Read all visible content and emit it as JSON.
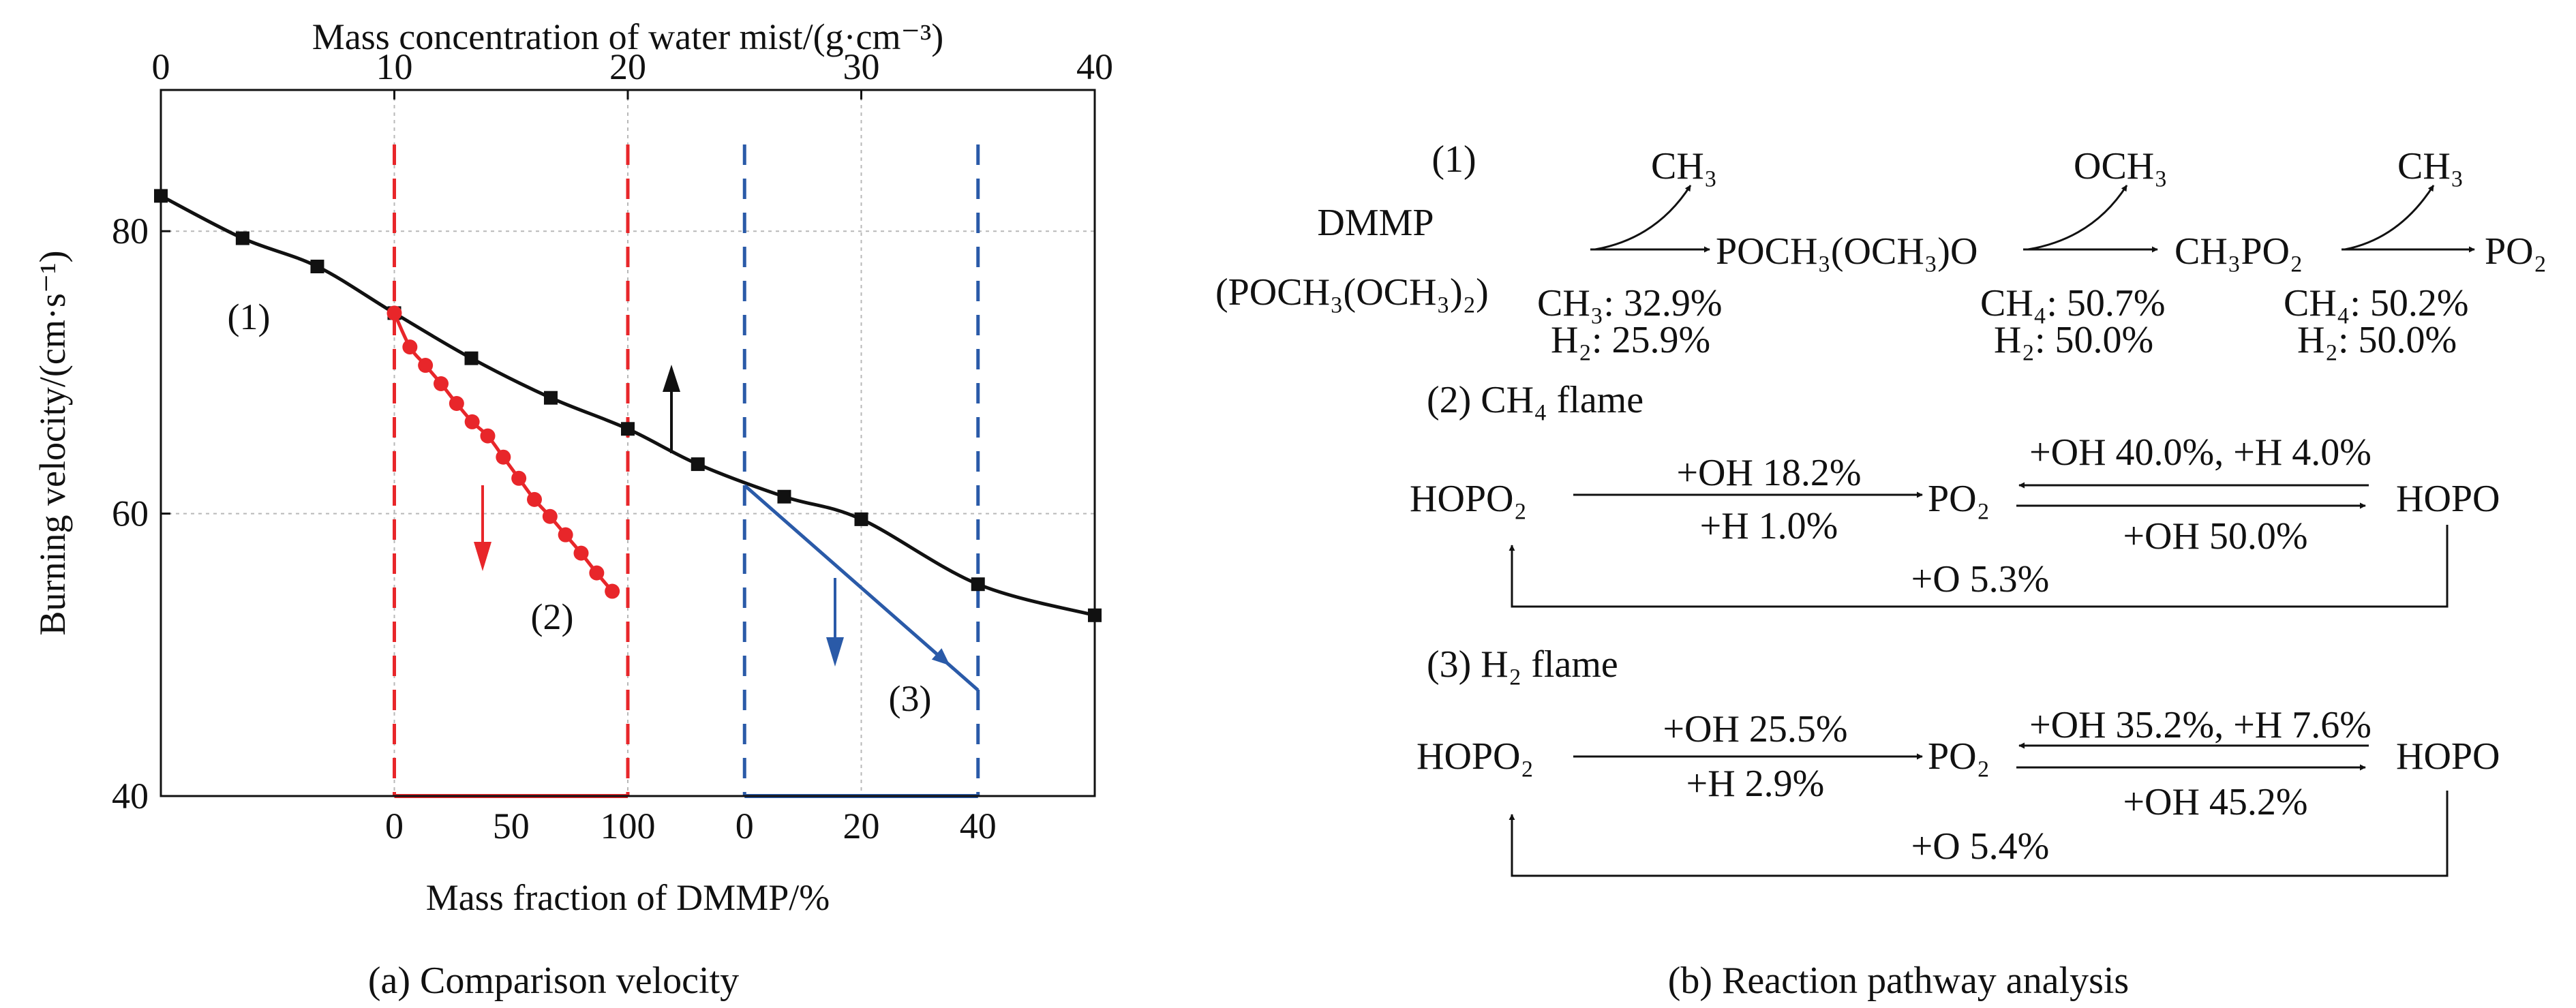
{
  "panel_a": {
    "caption": "(a) Comparison velocity",
    "top_axis_label": "Mass concentration of water mist/(g·cm⁻³)",
    "top_ticks": [
      "0",
      "10",
      "20",
      "30",
      "40"
    ],
    "ylabel": "Burning velocity/(cm·s⁻¹)",
    "y_ticks": [
      "40",
      "60",
      "80"
    ],
    "xlabel": "Mass fraction of DMMP/%",
    "red_ticks": [
      "0",
      "50",
      "100"
    ],
    "blue_ticks": [
      "0",
      "20",
      "40"
    ],
    "curve_labels": [
      "(1)",
      "(2)",
      "(3)"
    ]
  },
  "chart_data": {
    "type": "line",
    "axes": {
      "top_x": {
        "label": "Mass concentration of water mist/(g·cm⁻³)",
        "range": [
          0,
          40
        ]
      },
      "y": {
        "label": "Burning velocity/(cm·s⁻¹)",
        "range": [
          40,
          90
        ],
        "ticks": [
          40,
          60,
          80
        ]
      },
      "bottom_red": {
        "label": "Mass fraction of DMMP/%",
        "range": [
          0,
          100
        ],
        "ticks": [
          0,
          50,
          100
        ],
        "span_top_x": [
          10,
          20
        ]
      },
      "bottom_blue": {
        "label": "Mass fraction of DMMP/%",
        "range": [
          0,
          40
        ],
        "ticks": [
          0,
          20,
          40
        ],
        "span_top_x": [
          25,
          35
        ]
      }
    },
    "grid": true,
    "series": [
      {
        "label": "(1)",
        "color": "#111111",
        "marker": "square",
        "axis": "top_x",
        "x": [
          0,
          3.5,
          6.7,
          10,
          13.3,
          16.7,
          20,
          23,
          26.7,
          30,
          35,
          40
        ],
        "y": [
          82.5,
          79.5,
          77.5,
          74.2,
          71,
          68.2,
          66,
          63.5,
          61.2,
          59.6,
          55,
          52.8
        ]
      },
      {
        "label": "(2)",
        "color": "#e8262a",
        "marker": "circle",
        "axis": "bottom_red",
        "x": [
          0,
          6.67,
          13.33,
          20,
          26.67,
          33.33,
          40,
          46.67,
          53.33,
          60,
          66.67,
          73.33,
          80,
          86.67,
          93.33
        ],
        "y": [
          74.2,
          71.8,
          70.5,
          69.2,
          67.8,
          66.5,
          65.5,
          64,
          62.5,
          61,
          59.8,
          58.5,
          57.2,
          55.8,
          54.5
        ]
      },
      {
        "label": "(3)",
        "color": "#2a5aa8",
        "marker": "none",
        "axis": "bottom_blue",
        "x": [
          0,
          40
        ],
        "y": [
          62,
          47.5
        ]
      }
    ],
    "annotations": [
      {
        "text": "↑",
        "color": "#111111",
        "meaning": "curve 1 arrow"
      },
      {
        "text": "↓",
        "color": "#e8262a",
        "meaning": "curve 2 arrow"
      },
      {
        "text": "↓",
        "color": "#2a5aa8",
        "meaning": "curve 3 arrow"
      }
    ]
  },
  "panel_b": {
    "caption": "(b) Reaction pathway analysis",
    "s1": {
      "label": "(1)",
      "dmmp": "DMMP",
      "formula": "(POCH₃(OCH₃)₂)",
      "ch3_a": "CH₃",
      "inter1": "POCH₃(OCH₃)O",
      "och3": "OCH₃",
      "inter2": "CH₃PO₂",
      "ch3_b": "CH₃",
      "product": "PO₂",
      "stat1a": "CH₃: 32.9%",
      "stat1b": "H₂: 25.9%",
      "stat2a": "CH₄: 50.7%",
      "stat2b": "H₂: 50.0%",
      "stat3a": "CH₄: 50.2%",
      "stat3b": "H₂: 50.0%"
    },
    "s2": {
      "label": "(2)  CH₄ flame",
      "hopo2": "HOPO₂",
      "po2": "PO₂",
      "hopo": "HOPO",
      "r1_top": "+OH 18.2%",
      "r1_bot": "+H 1.0%",
      "r2_top": "+OH 40.0%, +H 4.0%",
      "r2_bot": "+OH 50.0%",
      "loop": "+O 5.3%"
    },
    "s3": {
      "label": "(3)  H₂ flame",
      "hopo2": "HOPO₂",
      "po2": "PO₂",
      "hopo": "HOPO",
      "r1_top": "+OH 25.5%",
      "r1_bot": "+H 2.9%",
      "r2_top": "+OH 35.2%, +H 7.6%",
      "r2_bot": "+OH 45.2%",
      "loop": "+O 5.4%"
    }
  }
}
